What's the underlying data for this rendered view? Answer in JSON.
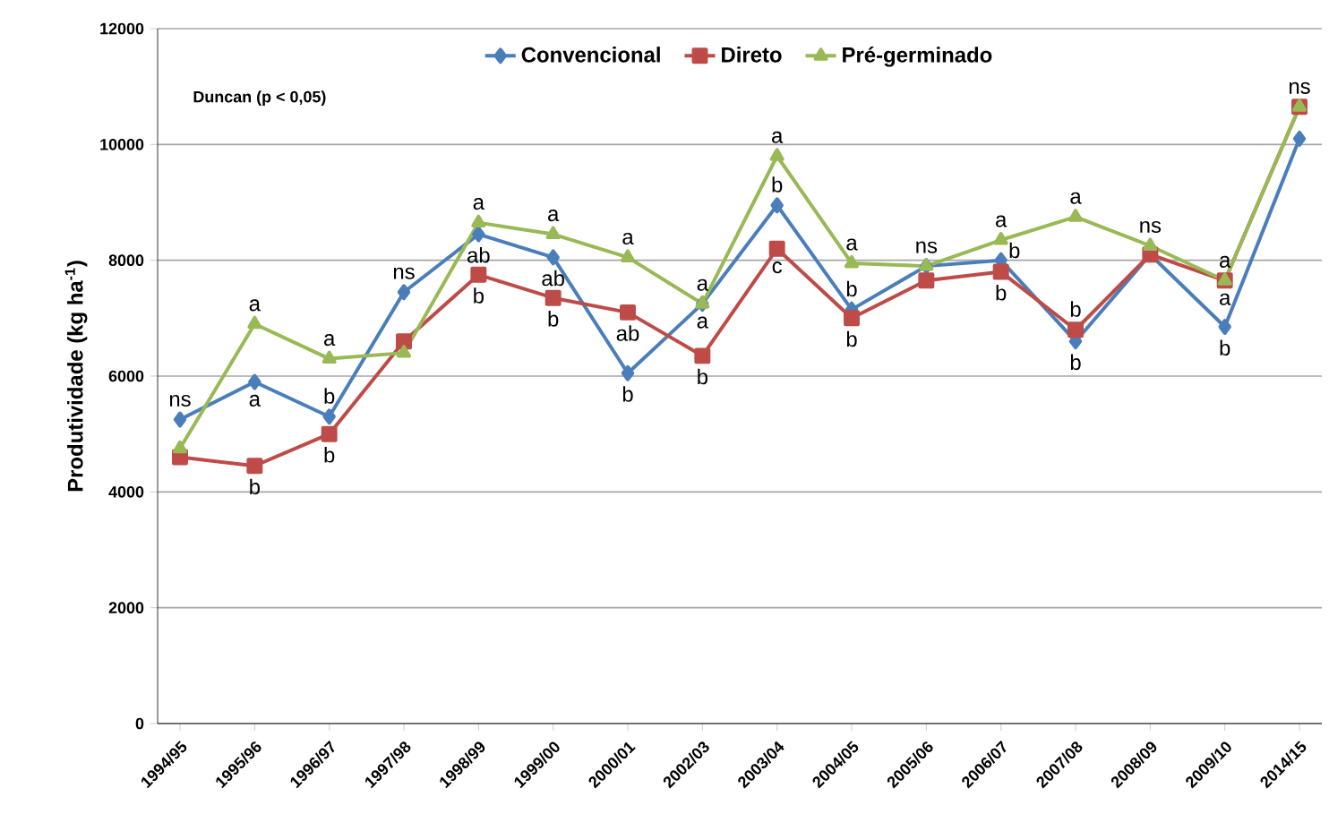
{
  "chart_data": {
    "type": "line",
    "ylabel": "Produtividade (kg ha$^{-1}$)",
    "categories": [
      "1994/95",
      "1995/96",
      "1996/97",
      "1997/98",
      "1998/99",
      "1999/00",
      "2000/01",
      "2002/03",
      "2003/04",
      "2004/05",
      "2005/06",
      "2006/07",
      "2007/08",
      "2008/09",
      "2009/10",
      "2014/15"
    ],
    "series": [
      {
        "name": "Convencional",
        "color": "#4a7ebb",
        "marker": "diamond",
        "values": [
          5250,
          5900,
          5300,
          7450,
          8450,
          8050,
          6050,
          7250,
          8950,
          7150,
          7900,
          8000,
          6600,
          8100,
          6850,
          10100
        ],
        "value_labels": [
          "ns",
          "a",
          "b",
          "ns",
          "ab",
          "ab",
          "b",
          "a",
          "b",
          "b",
          null,
          "b",
          "b",
          null,
          "b",
          null
        ]
      },
      {
        "name": "Direto",
        "color": "#be4b48",
        "marker": "square",
        "values": [
          4600,
          4450,
          5000,
          6600,
          7750,
          7350,
          7100,
          6350,
          8200,
          7000,
          7650,
          7800,
          6800,
          8100,
          7650,
          10650
        ],
        "value_labels": [
          null,
          "b",
          "b",
          null,
          "b",
          "b",
          "ab",
          "b",
          "c",
          "b",
          null,
          "b",
          "b",
          null,
          "a",
          null
        ]
      },
      {
        "name": "Pré-germinado",
        "color": "#98b954",
        "marker": "triangle",
        "values": [
          4750,
          6900,
          6300,
          6400,
          8650,
          8450,
          8050,
          7250,
          9800,
          7950,
          7900,
          8350,
          8750,
          8250,
          7650,
          10650
        ],
        "value_labels": [
          null,
          "a",
          "a",
          null,
          "a",
          "a",
          "a",
          "a",
          "a",
          "a",
          "ns",
          "a",
          "a",
          "ns",
          "a",
          "ns"
        ]
      }
    ],
    "ylim": [
      0,
      12000
    ],
    "yticks": [
      0,
      2000,
      4000,
      6000,
      8000,
      10000,
      12000
    ],
    "grid": "y",
    "legend": "top",
    "line_style": "solid",
    "annotations": [
      "Duncan (p < 0,05)"
    ]
  }
}
